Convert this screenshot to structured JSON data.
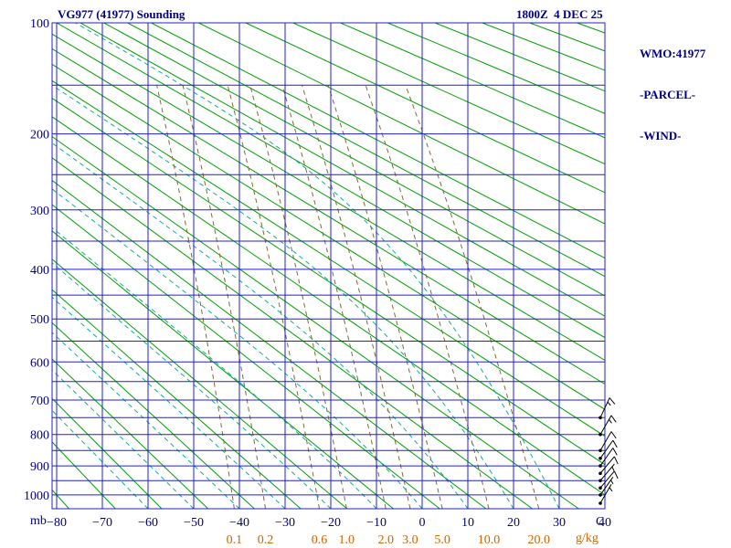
{
  "header": {
    "title": "VG977 (41977) Sounding",
    "datetime": "1800Z  4 DEC 25",
    "right_panel": [
      "WMO:41977",
      "-PARCEL-",
      "-WIND-"
    ]
  },
  "axis_unit_labels": {
    "pressure": "mb",
    "temperature": "C",
    "mixing_ratio": "g/kg"
  },
  "chart_data": {
    "type": "line",
    "variant": "thermodynamic-sounding-diagram",
    "title": "VG977 (41977) Sounding",
    "valid_time": "1800Z 4 DEC 25",
    "station": "WMO:41977",
    "legend_entries": [
      "-PARCEL-",
      "-WIND-"
    ],
    "pressure_axis": {
      "unit": "mb",
      "scale": "p^0.286",
      "range_mb": [
        100,
        1050
      ],
      "ticks_mb": [
        100,
        200,
        300,
        400,
        500,
        600,
        700,
        800,
        900,
        1000
      ],
      "isobar_interval_mb": 50
    },
    "temperature_axis": {
      "unit": "C",
      "range_c": [
        -81,
        40
      ],
      "ticks_c": [
        -80,
        -70,
        -60,
        -50,
        -40,
        -30,
        -20,
        -10,
        0,
        10,
        20,
        30,
        40
      ],
      "tick_labels": [
        "−80",
        "−70",
        "−60",
        "−50",
        "−40",
        "−30",
        "−20",
        "−10",
        "0",
        "10",
        "20",
        "30",
        "40"
      ],
      "isotherm_interval_c": 10
    },
    "dry_adiabats_theta_c": [
      -80,
      -70,
      -60,
      -50,
      -40,
      -30,
      -20,
      -10,
      0,
      10,
      20,
      30,
      40,
      50,
      60,
      70,
      80,
      90,
      100,
      110,
      120,
      130,
      140,
      160,
      180,
      200,
      220,
      240,
      260,
      280,
      300,
      320
    ],
    "moist_adiabats_start_temp_c": [
      -60,
      -50,
      -40,
      -30,
      -20,
      -10,
      0,
      10,
      20,
      30
    ],
    "mixing_ratio_g_per_kg": [
      0.1,
      0.2,
      0.6,
      1.0,
      2.0,
      3.0,
      5.0,
      10.0,
      20.0
    ],
    "mixing_ratio_labels": [
      "0.1",
      "0.2",
      "0.6",
      "1.0",
      "2.0",
      "3.0",
      "5.0",
      "10.0",
      "20.0"
    ],
    "mixing_ratio_unit": "g/kg",
    "wind_barbs": [
      {
        "pressure_mb": 750,
        "speed_kt": 15,
        "dir_deg": 25
      },
      {
        "pressure_mb": 800,
        "speed_kt": 15,
        "dir_deg": 30
      },
      {
        "pressure_mb": 850,
        "speed_kt": 10,
        "dir_deg": 30
      },
      {
        "pressure_mb": 875,
        "speed_kt": 10,
        "dir_deg": 35
      },
      {
        "pressure_mb": 900,
        "speed_kt": 10,
        "dir_deg": 35
      },
      {
        "pressure_mb": 925,
        "speed_kt": 10,
        "dir_deg": 40
      },
      {
        "pressure_mb": 950,
        "speed_kt": 5,
        "dir_deg": 40
      },
      {
        "pressure_mb": 975,
        "speed_kt": 10,
        "dir_deg": 40
      },
      {
        "pressure_mb": 1000,
        "speed_kt": 5,
        "dir_deg": 35
      },
      {
        "pressure_mb": 1030,
        "speed_kt": 5,
        "dir_deg": 30
      }
    ],
    "colors": {
      "grid_blue": "#2020cc",
      "adiabat_green": "#00a000",
      "moist_teal": "#10ad9b",
      "mixing_olive": "#806a33",
      "label_orange": "#cc6600",
      "text_navy": "#000080",
      "wind_black": "#000000"
    }
  }
}
